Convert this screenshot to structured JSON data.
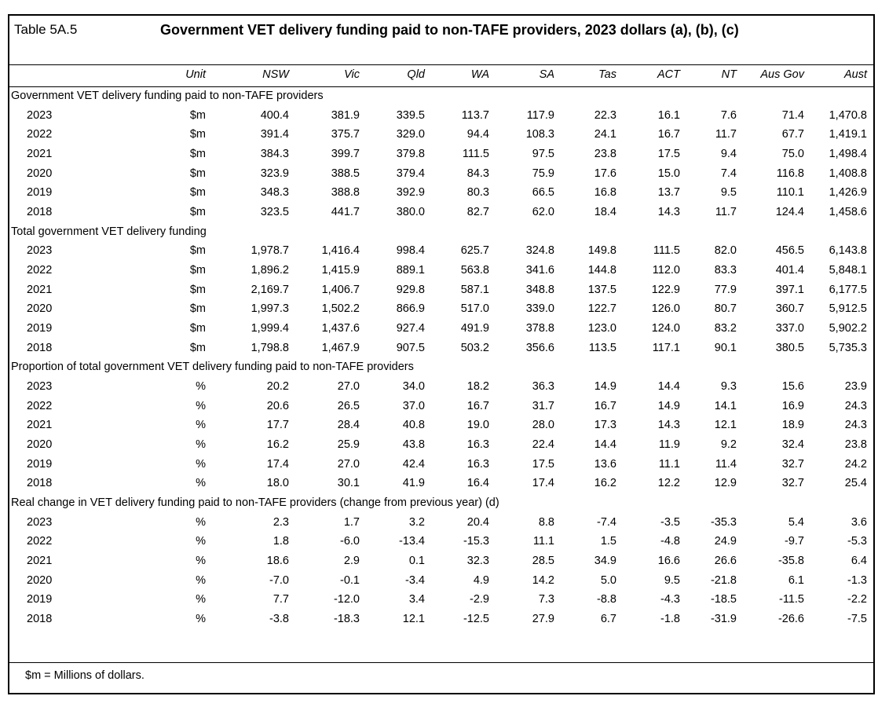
{
  "table_id": "Table 5A.5",
  "title": "Government VET delivery funding paid to non-TAFE providers, 2023 dollars (a), (b), (c)",
  "headers": [
    "Unit",
    "NSW",
    "Vic",
    "Qld",
    "WA",
    "SA",
    "Tas",
    "ACT",
    "NT",
    "Aus Gov",
    "Aust"
  ],
  "sections": [
    {
      "title": "Government VET delivery funding paid to non-TAFE providers",
      "rows": [
        {
          "year": "2023",
          "unit": "$m",
          "values": [
            "400.4",
            "381.9",
            "339.5",
            "113.7",
            "117.9",
            "22.3",
            "16.1",
            "7.6",
            "71.4",
            "1,470.8"
          ]
        },
        {
          "year": "2022",
          "unit": "$m",
          "values": [
            "391.4",
            "375.7",
            "329.0",
            "94.4",
            "108.3",
            "24.1",
            "16.7",
            "11.7",
            "67.7",
            "1,419.1"
          ]
        },
        {
          "year": "2021",
          "unit": "$m",
          "values": [
            "384.3",
            "399.7",
            "379.8",
            "111.5",
            "97.5",
            "23.8",
            "17.5",
            "9.4",
            "75.0",
            "1,498.4"
          ]
        },
        {
          "year": "2020",
          "unit": "$m",
          "values": [
            "323.9",
            "388.5",
            "379.4",
            "84.3",
            "75.9",
            "17.6",
            "15.0",
            "7.4",
            "116.8",
            "1,408.8"
          ]
        },
        {
          "year": "2019",
          "unit": "$m",
          "values": [
            "348.3",
            "388.8",
            "392.9",
            "80.3",
            "66.5",
            "16.8",
            "13.7",
            "9.5",
            "110.1",
            "1,426.9"
          ]
        },
        {
          "year": "2018",
          "unit": "$m",
          "values": [
            "323.5",
            "441.7",
            "380.0",
            "82.7",
            "62.0",
            "18.4",
            "14.3",
            "11.7",
            "124.4",
            "1,458.6"
          ]
        }
      ]
    },
    {
      "title": "Total government VET delivery funding",
      "rows": [
        {
          "year": "2023",
          "unit": "$m",
          "values": [
            "1,978.7",
            "1,416.4",
            "998.4",
            "625.7",
            "324.8",
            "149.8",
            "111.5",
            "82.0",
            "456.5",
            "6,143.8"
          ]
        },
        {
          "year": "2022",
          "unit": "$m",
          "values": [
            "1,896.2",
            "1,415.9",
            "889.1",
            "563.8",
            "341.6",
            "144.8",
            "112.0",
            "83.3",
            "401.4",
            "5,848.1"
          ]
        },
        {
          "year": "2021",
          "unit": "$m",
          "values": [
            "2,169.7",
            "1,406.7",
            "929.8",
            "587.1",
            "348.8",
            "137.5",
            "122.9",
            "77.9",
            "397.1",
            "6,177.5"
          ]
        },
        {
          "year": "2020",
          "unit": "$m",
          "values": [
            "1,997.3",
            "1,502.2",
            "866.9",
            "517.0",
            "339.0",
            "122.7",
            "126.0",
            "80.7",
            "360.7",
            "5,912.5"
          ]
        },
        {
          "year": "2019",
          "unit": "$m",
          "values": [
            "1,999.4",
            "1,437.6",
            "927.4",
            "491.9",
            "378.8",
            "123.0",
            "124.0",
            "83.2",
            "337.0",
            "5,902.2"
          ]
        },
        {
          "year": "2018",
          "unit": "$m",
          "values": [
            "1,798.8",
            "1,467.9",
            "907.5",
            "503.2",
            "356.6",
            "113.5",
            "117.1",
            "90.1",
            "380.5",
            "5,735.3"
          ]
        }
      ]
    },
    {
      "title": "Proportion of total government VET delivery funding paid to non-TAFE providers",
      "rows": [
        {
          "year": "2023",
          "unit": "%",
          "values": [
            "20.2",
            "27.0",
            "34.0",
            "18.2",
            "36.3",
            "14.9",
            "14.4",
            "9.3",
            "15.6",
            "23.9"
          ]
        },
        {
          "year": "2022",
          "unit": "%",
          "values": [
            "20.6",
            "26.5",
            "37.0",
            "16.7",
            "31.7",
            "16.7",
            "14.9",
            "14.1",
            "16.9",
            "24.3"
          ]
        },
        {
          "year": "2021",
          "unit": "%",
          "values": [
            "17.7",
            "28.4",
            "40.8",
            "19.0",
            "28.0",
            "17.3",
            "14.3",
            "12.1",
            "18.9",
            "24.3"
          ]
        },
        {
          "year": "2020",
          "unit": "%",
          "values": [
            "16.2",
            "25.9",
            "43.8",
            "16.3",
            "22.4",
            "14.4",
            "11.9",
            "9.2",
            "32.4",
            "23.8"
          ]
        },
        {
          "year": "2019",
          "unit": "%",
          "values": [
            "17.4",
            "27.0",
            "42.4",
            "16.3",
            "17.5",
            "13.6",
            "11.1",
            "11.4",
            "32.7",
            "24.2"
          ]
        },
        {
          "year": "2018",
          "unit": "%",
          "values": [
            "18.0",
            "30.1",
            "41.9",
            "16.4",
            "17.4",
            "16.2",
            "12.2",
            "12.9",
            "32.7",
            "25.4"
          ]
        }
      ]
    },
    {
      "title": "Real change in VET delivery funding paid to non-TAFE providers (change from previous year) (d)",
      "rows": [
        {
          "year": "2023",
          "unit": "%",
          "values": [
            "2.3",
            "1.7",
            "3.2",
            "20.4",
            "8.8",
            "-7.4",
            "-3.5",
            "-35.3",
            "5.4",
            "3.6"
          ]
        },
        {
          "year": "2022",
          "unit": "%",
          "values": [
            "1.8",
            "-6.0",
            "-13.4",
            "-15.3",
            "11.1",
            "1.5",
            "-4.8",
            "24.9",
            "-9.7",
            "-5.3"
          ]
        },
        {
          "year": "2021",
          "unit": "%",
          "values": [
            "18.6",
            "2.9",
            "0.1",
            "32.3",
            "28.5",
            "34.9",
            "16.6",
            "26.6",
            "-35.8",
            "6.4"
          ]
        },
        {
          "year": "2020",
          "unit": "%",
          "values": [
            "-7.0",
            "-0.1",
            "-3.4",
            "4.9",
            "14.2",
            "5.0",
            "9.5",
            "-21.8",
            "6.1",
            "-1.3"
          ]
        },
        {
          "year": "2019",
          "unit": "%",
          "values": [
            "7.7",
            "-12.0",
            "3.4",
            "-2.9",
            "7.3",
            "-8.8",
            "-4.3",
            "-18.5",
            "-11.5",
            "-2.2"
          ]
        },
        {
          "year": "2018",
          "unit": "%",
          "values": [
            "-3.8",
            "-18.3",
            "12.1",
            "-12.5",
            "27.9",
            "6.7",
            "-1.8",
            "-31.9",
            "-26.6",
            "-7.5"
          ]
        }
      ]
    }
  ],
  "footnote": "$m = Millions of dollars."
}
